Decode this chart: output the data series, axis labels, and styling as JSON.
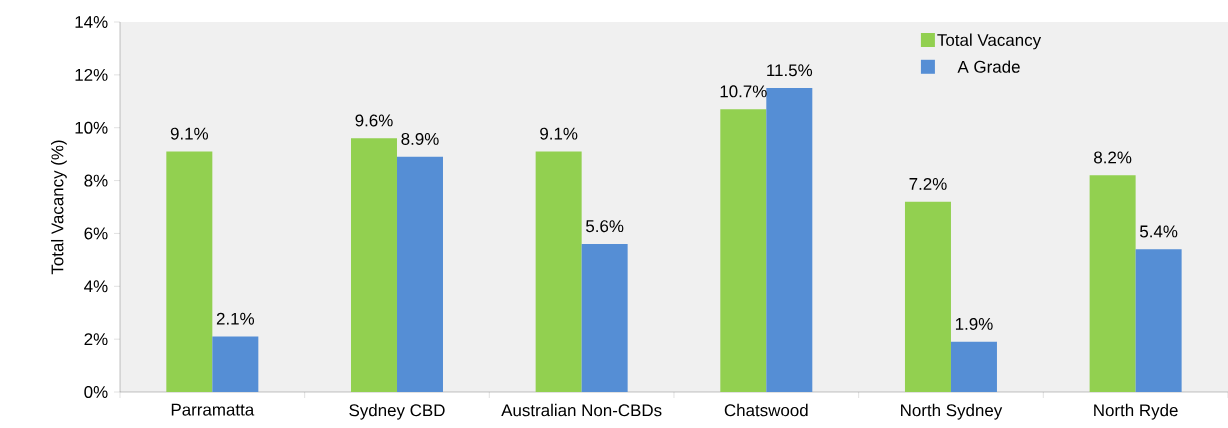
{
  "chart_data": {
    "type": "bar",
    "ylabel": "Total Vacancy (%)",
    "categories": [
      "Parramatta",
      "Sydney CBD",
      "Australian Non-CBDs",
      "Chatswood",
      "North Sydney",
      "North Ryde"
    ],
    "series": [
      {
        "name": "Total Vacancy",
        "color": "#92d050",
        "values": [
          9.1,
          9.6,
          9.1,
          10.7,
          7.2,
          8.2
        ],
        "value_labels": [
          "9.1%",
          "9.6%",
          "9.1%",
          "10.7%",
          "7.2%",
          "8.2%"
        ]
      },
      {
        "name": "A Grade",
        "color": "#558ed5",
        "values": [
          2.1,
          8.9,
          5.6,
          11.5,
          1.9,
          5.4
        ],
        "value_labels": [
          "2.1%",
          "8.9%",
          "5.6%",
          "11.5%",
          "1.9%",
          "5.4%"
        ]
      }
    ],
    "ylim": [
      0,
      14
    ],
    "yticks": [
      {
        "value": 0,
        "label": "0%"
      },
      {
        "value": 2,
        "label": "2%"
      },
      {
        "value": 4,
        "label": "4%"
      },
      {
        "value": 6,
        "label": "6%"
      },
      {
        "value": 8,
        "label": "8%"
      },
      {
        "value": 10,
        "label": "10%"
      },
      {
        "value": 12,
        "label": "12%"
      },
      {
        "value": 14,
        "label": "14%"
      }
    ],
    "grid": false,
    "legend": "top right"
  }
}
